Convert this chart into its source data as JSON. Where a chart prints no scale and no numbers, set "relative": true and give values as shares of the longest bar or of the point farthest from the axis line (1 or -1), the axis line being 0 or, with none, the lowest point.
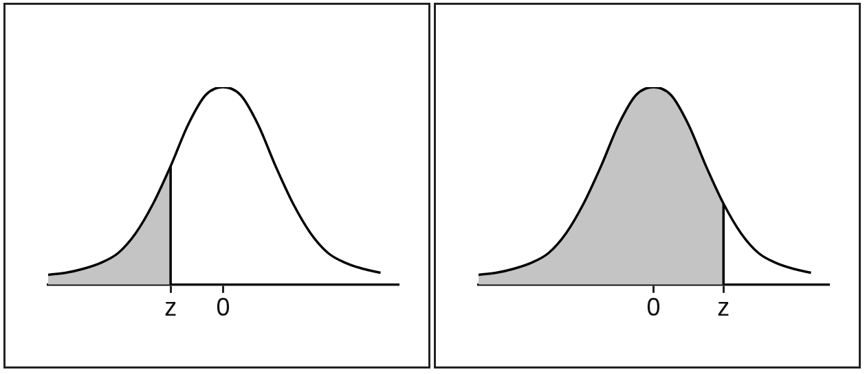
{
  "chart_data": [
    {
      "type": "line",
      "relative": true,
      "categories": [
        null,
        null,
        null,
        null,
        null,
        null,
        null,
        "z",
        null,
        null,
        "0",
        null,
        null,
        null,
        null,
        null,
        null,
        null,
        null,
        null,
        null
      ],
      "ref_lines": [
        {
          "axis": "x",
          "value": "z",
          "color": "#000000"
        }
      ],
      "legend": false,
      "grid": false,
      "marker": "none",
      "series": [
        {
          "type": "area",
          "color": "#c4c4c4",
          "values": [
            0.05,
            0.06,
            0.08,
            0.11,
            0.16,
            0.26,
            0.41,
            0.6,
            null,
            null,
            null,
            null,
            null,
            null,
            null,
            null,
            null,
            null,
            null,
            null,
            null
          ]
        },
        {
          "color": "#000000",
          "values": [
            0.05,
            0.06,
            0.08,
            0.11,
            0.16,
            0.26,
            0.41,
            0.6,
            0.81,
            0.96,
            1,
            0.96,
            0.81,
            0.6,
            0.41,
            0.26,
            0.16,
            0.11,
            0.08,
            0.06,
            null
          ]
        }
      ]
    },
    {
      "type": "line",
      "relative": true,
      "categories": [
        null,
        null,
        null,
        null,
        null,
        null,
        null,
        null,
        null,
        null,
        "0",
        null,
        null,
        null,
        "z",
        null,
        null,
        null,
        null,
        null,
        null
      ],
      "ref_lines": [
        {
          "axis": "x",
          "value": "z",
          "color": "#000000"
        }
      ],
      "legend": false,
      "grid": false,
      "marker": "none",
      "series": [
        {
          "type": "area",
          "color": "#c4c4c4",
          "values": [
            0.05,
            0.06,
            0.08,
            0.11,
            0.16,
            0.26,
            0.41,
            0.6,
            0.81,
            0.96,
            1,
            0.96,
            0.81,
            0.6,
            0.41,
            null,
            null,
            null,
            null,
            null,
            null
          ]
        },
        {
          "color": "#000000",
          "values": [
            0.05,
            0.06,
            0.08,
            0.11,
            0.16,
            0.26,
            0.41,
            0.6,
            0.81,
            0.96,
            1,
            0.96,
            0.81,
            0.6,
            0.41,
            0.26,
            0.16,
            0.11,
            0.08,
            0.06,
            null
          ]
        }
      ]
    }
  ]
}
